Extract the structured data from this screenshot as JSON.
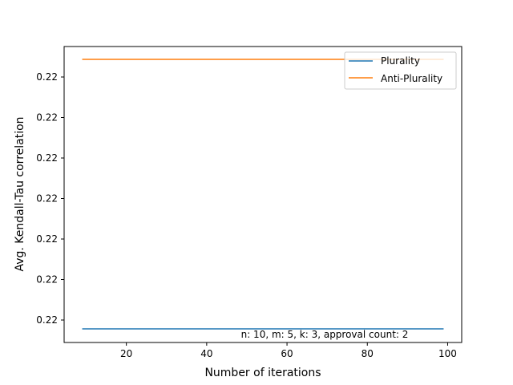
{
  "chart_data": {
    "type": "line",
    "title": "",
    "xlabel": "Number of iterations",
    "ylabel": "Avg. Kendall-Tau correlation",
    "xlim": [
      4.5,
      103.5
    ],
    "x": [
      9,
      19,
      29,
      39,
      49,
      59,
      69,
      79,
      89,
      99
    ],
    "x_ticks": [
      20,
      40,
      60,
      80,
      100
    ],
    "x_tick_labels": [
      "20",
      "40",
      "60",
      "80",
      "100"
    ],
    "y_tick_labels": [
      "0.22",
      "0.22",
      "0.22",
      "0.22",
      "0.22",
      "0.22",
      "0.22"
    ],
    "series": [
      {
        "name": "Plurality",
        "color": "#1f77b4",
        "values": [
          0.2222222,
          0.2222222,
          0.2222222,
          0.2222222,
          0.2222222,
          0.2222222,
          0.2222222,
          0.2222222,
          0.2222222,
          0.2222222
        ]
      },
      {
        "name": "Anti-Plurality",
        "color": "#ff7f0e",
        "values": [
          0.2222223,
          0.2222223,
          0.2222223,
          0.2222223,
          0.2222223,
          0.2222223,
          0.2222223,
          0.2222223,
          0.2222223,
          0.2222223
        ]
      }
    ],
    "legend_position": "top-right",
    "grid": false,
    "annotation": "n: 10, m: 5, k: 3, approval count: 2"
  }
}
